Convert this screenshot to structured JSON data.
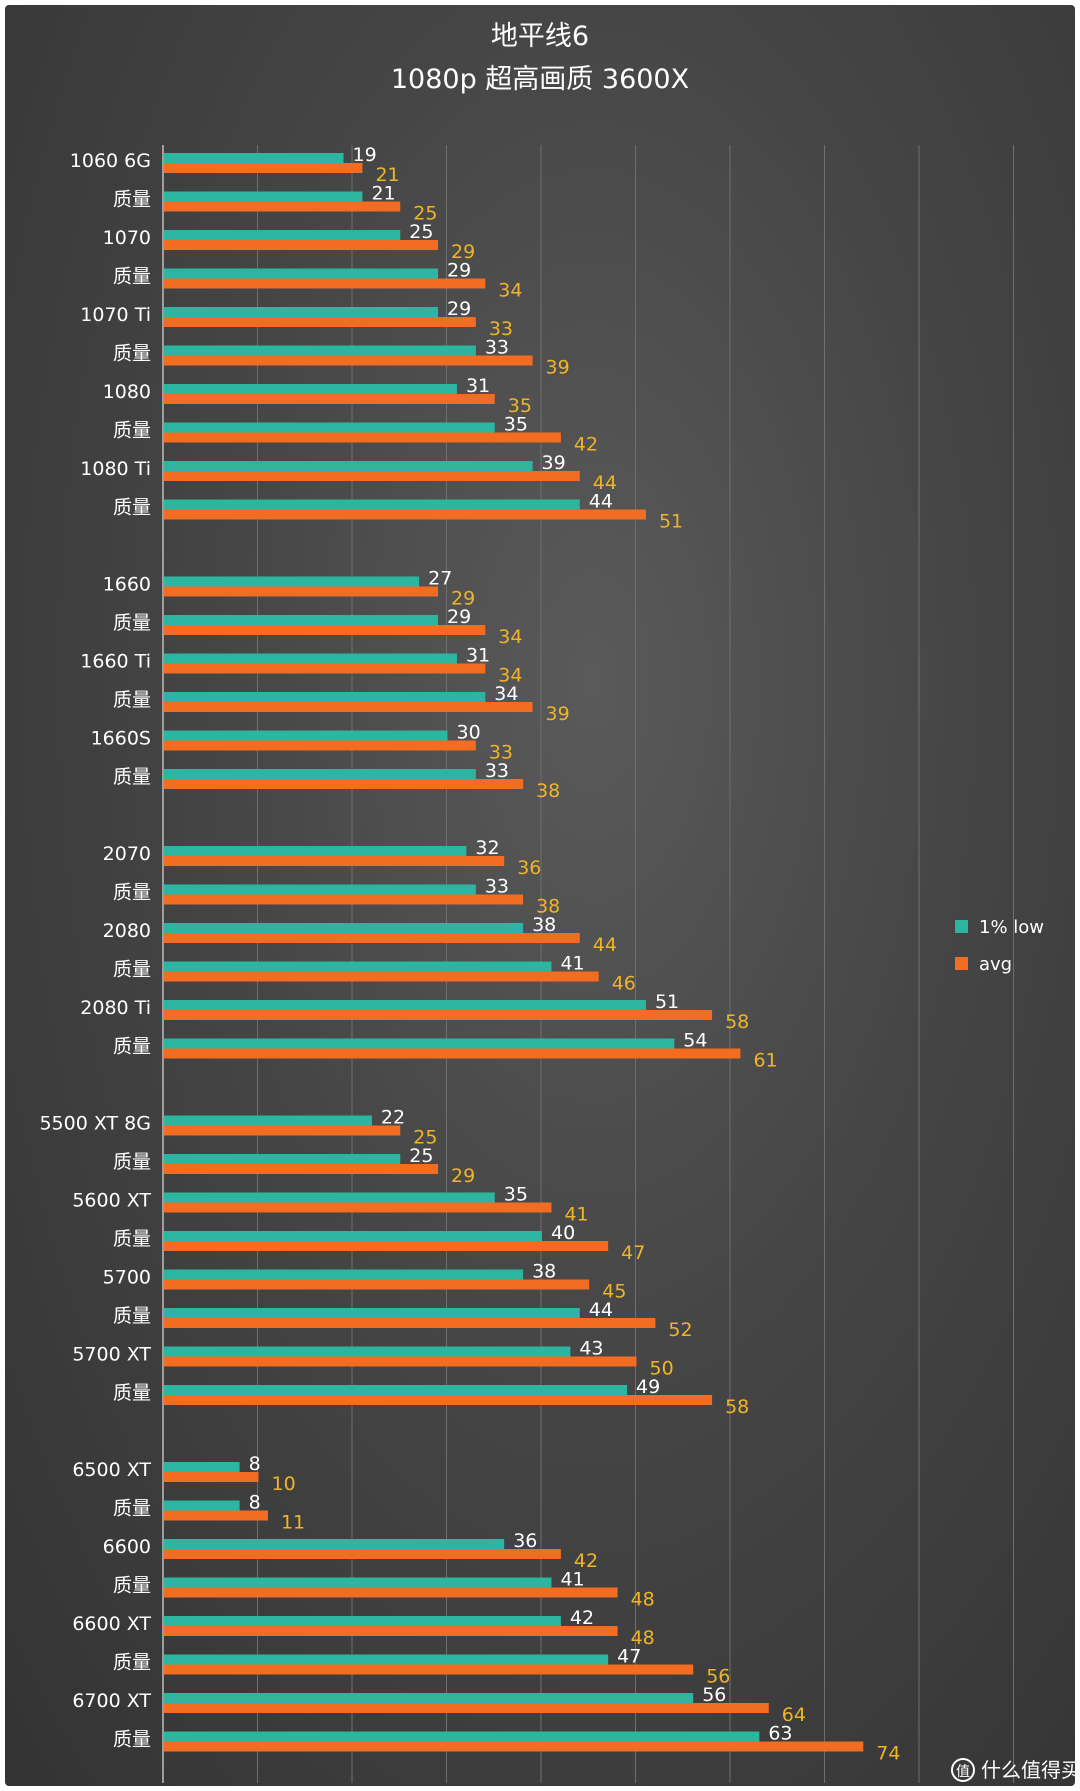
{
  "chart_data": {
    "type": "bar",
    "orientation": "horizontal",
    "title": "地平线6",
    "subtitle": "1080p 超高画质 3600X",
    "categories": [
      "1060 6G",
      "质量",
      "1070",
      "质量",
      "1070 Ti",
      "质量",
      "1080",
      "质量",
      "1080 Ti",
      "质量",
      "1660",
      "质量",
      "1660 Ti",
      "质量",
      "1660S",
      "质量",
      "2070",
      "质量",
      "2080",
      "质量",
      "2080 Ti",
      "质量",
      "5500 XT 8G",
      "质量",
      "5600 XT",
      "质量",
      "5700",
      "质量",
      "5700 XT",
      "质量",
      "6500 XT",
      "质量",
      "6600",
      "质量",
      "6600 XT",
      "质量",
      "6700 XT",
      "质量"
    ],
    "groups": [
      10,
      6,
      6,
      8,
      8
    ],
    "series": [
      {
        "name": "1% low",
        "color": "#2cb5a0",
        "values": [
          19,
          21,
          25,
          29,
          29,
          33,
          31,
          35,
          39,
          44,
          27,
          29,
          31,
          34,
          30,
          33,
          32,
          33,
          38,
          41,
          51,
          54,
          22,
          25,
          35,
          40,
          38,
          44,
          43,
          49,
          8,
          8,
          36,
          41,
          42,
          47,
          56,
          63
        ]
      },
      {
        "name": "avg",
        "color": "#f26c21",
        "values": [
          21,
          25,
          29,
          34,
          33,
          39,
          35,
          42,
          44,
          51,
          29,
          34,
          34,
          39,
          33,
          38,
          36,
          38,
          44,
          46,
          58,
          61,
          25,
          29,
          41,
          47,
          45,
          52,
          50,
          58,
          10,
          11,
          42,
          48,
          48,
          56,
          64,
          74
        ]
      }
    ],
    "xlim": [
      0,
      90
    ],
    "grid": true,
    "legend_position": "right"
  },
  "watermark": "什么值得买"
}
